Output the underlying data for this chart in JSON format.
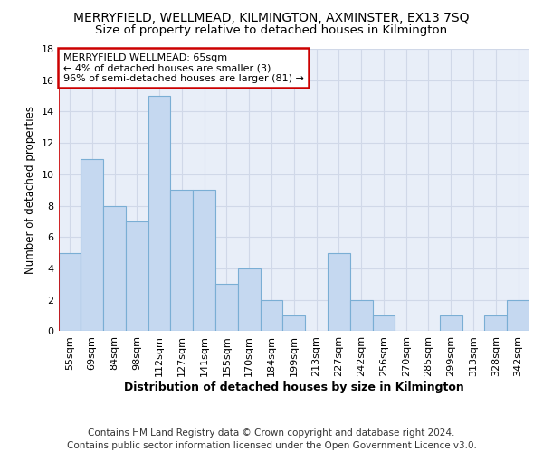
{
  "title": "MERRYFIELD, WELLMEAD, KILMINGTON, AXMINSTER, EX13 7SQ",
  "subtitle": "Size of property relative to detached houses in Kilmington",
  "xlabel": "Distribution of detached houses by size in Kilmington",
  "ylabel": "Number of detached properties",
  "categories": [
    "55sqm",
    "69sqm",
    "84sqm",
    "98sqm",
    "112sqm",
    "127sqm",
    "141sqm",
    "155sqm",
    "170sqm",
    "184sqm",
    "199sqm",
    "213sqm",
    "227sqm",
    "242sqm",
    "256sqm",
    "270sqm",
    "285sqm",
    "299sqm",
    "313sqm",
    "328sqm",
    "342sqm"
  ],
  "values": [
    5,
    11,
    8,
    7,
    15,
    9,
    9,
    3,
    4,
    2,
    1,
    0,
    5,
    2,
    1,
    0,
    0,
    1,
    0,
    1,
    2
  ],
  "bar_color": "#c5d8f0",
  "bar_edge_color": "#7aaed4",
  "annotation_box_color": "#ffffff",
  "annotation_box_edge": "#cc0000",
  "annotation_text": "MERRYFIELD WELLMEAD: 65sqm\n← 4% of detached houses are smaller (3)\n96% of semi-detached houses are larger (81) →",
  "vline_color": "#cc0000",
  "ylim": [
    0,
    18
  ],
  "yticks": [
    0,
    2,
    4,
    6,
    8,
    10,
    12,
    14,
    16,
    18
  ],
  "footer1": "Contains HM Land Registry data © Crown copyright and database right 2024.",
  "footer2": "Contains public sector information licensed under the Open Government Licence v3.0.",
  "title_fontsize": 10,
  "subtitle_fontsize": 9.5,
  "xlabel_fontsize": 9,
  "ylabel_fontsize": 8.5,
  "tick_fontsize": 8,
  "annotation_fontsize": 8,
  "footer_fontsize": 7.5,
  "grid_color": "#d0d8e8",
  "background_color": "#e8eef8"
}
